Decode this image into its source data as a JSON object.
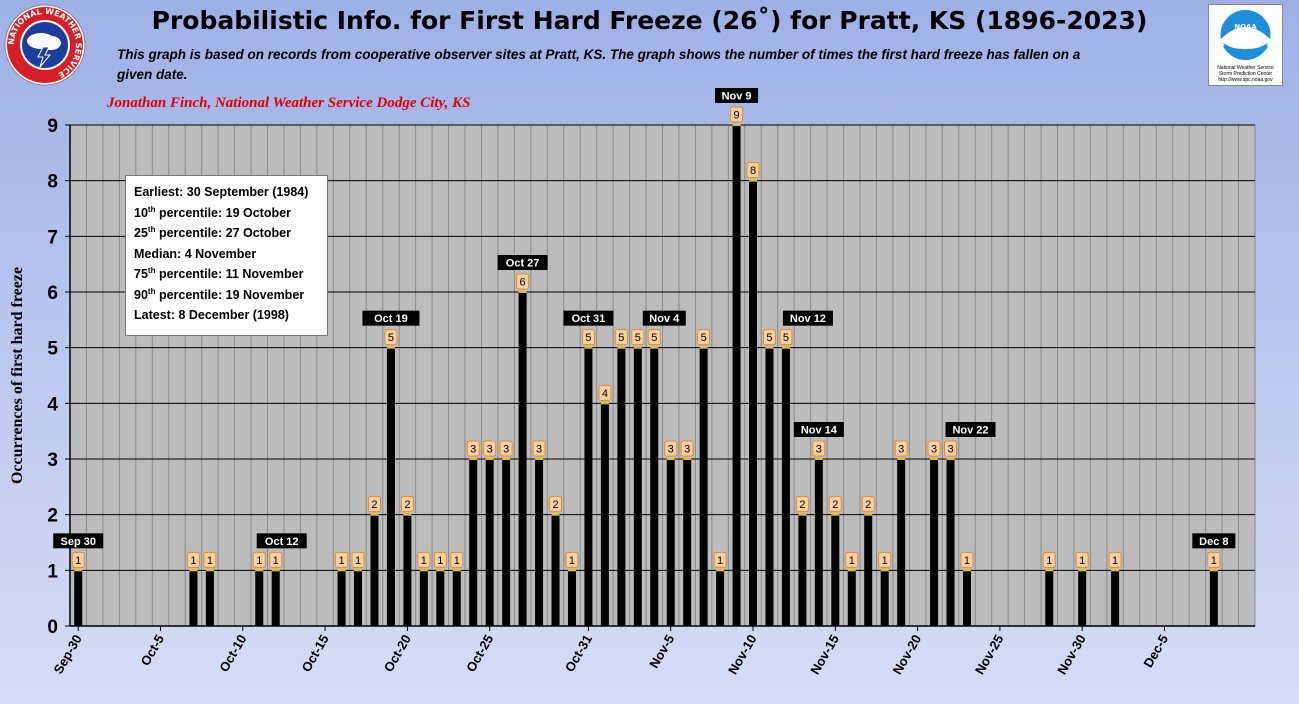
{
  "header": {
    "title": "Probabilistic Info. for First Hard Freeze (26˚) for Pratt, KS (1896-2023)",
    "subtitle_line1": "This graph is based on records from cooperative observer sites at Pratt, KS. The graph shows the number of times the first hard freeze has fallen on a",
    "subtitle_line2": "given date.",
    "credit": "Jonathan Finch, National Weather Service Dodge City, KS"
  },
  "logos": {
    "nws_ring_text": "NATIONAL WEATHER SERVICE",
    "noaa_label": "NOAA",
    "noaa_caption1": "National Weather Service",
    "noaa_caption2": "Storm Prediction Center",
    "noaa_caption3": "http://www.spc.noaa.gov",
    "colors": {
      "nws_ring": "#d81f26",
      "nws_inner": "#1b3d9c",
      "noaa_blue": "#1c8fd8"
    }
  },
  "stats": [
    {
      "label": "Earliest: 30 September (1984)"
    },
    {
      "prefix": "10",
      "sup": "th",
      "label": " percentile: 19 October"
    },
    {
      "prefix": "25",
      "sup": "th",
      "label": " percentile: 27 October"
    },
    {
      "label": "Median: 4 November"
    },
    {
      "prefix": "75",
      "sup": "th",
      "label": " percentile: 11 November"
    },
    {
      "prefix": "90",
      "sup": "th",
      "label": " percentile: 19 November"
    },
    {
      "label": "Latest: 8 December (1998)"
    }
  ],
  "chart_data": {
    "type": "bar",
    "ylabel": "Occurrences of first hard freeze",
    "xlabel": "",
    "ylim": [
      0,
      9
    ],
    "yticks": [
      0,
      1,
      2,
      3,
      4,
      5,
      6,
      7,
      8,
      9
    ],
    "grid": true,
    "start_date": "Sep-30",
    "end_date": "Dec-10",
    "colors": {
      "bar": "#000000",
      "plot_bg": "#bcbcbc",
      "grid": "#8a8a8a",
      "label_bg": "#fbd0a0",
      "label_border": "#d98c3a"
    },
    "x_tick_labels": [
      {
        "day": 0,
        "label": "Sep-30"
      },
      {
        "day": 5,
        "label": "Oct-5"
      },
      {
        "day": 10,
        "label": "Oct-10"
      },
      {
        "day": 15,
        "label": "Oct-15"
      },
      {
        "day": 20,
        "label": "Oct-20"
      },
      {
        "day": 25,
        "label": "Oct-25"
      },
      {
        "day": 31,
        "label": "Oct-31"
      },
      {
        "day": 36,
        "label": "Nov-5"
      },
      {
        "day": 41,
        "label": "Nov-10"
      },
      {
        "day": 46,
        "label": "Nov-15"
      },
      {
        "day": 51,
        "label": "Nov-20"
      },
      {
        "day": 56,
        "label": "Nov-25"
      },
      {
        "day": 61,
        "label": "Nov-30"
      },
      {
        "day": 66,
        "label": "Dec-5"
      }
    ],
    "values": [
      1,
      0,
      0,
      0,
      0,
      0,
      0,
      1,
      1,
      0,
      0,
      1,
      1,
      0,
      0,
      0,
      1,
      1,
      2,
      5,
      2,
      1,
      1,
      1,
      3,
      3,
      3,
      6,
      3,
      2,
      1,
      5,
      4,
      5,
      5,
      5,
      3,
      3,
      5,
      1,
      9,
      8,
      5,
      5,
      2,
      3,
      2,
      1,
      2,
      1,
      3,
      0,
      3,
      3,
      1,
      0,
      0,
      0,
      0,
      1,
      0,
      1,
      0,
      1,
      0,
      0,
      0,
      0,
      0,
      1,
      0,
      0
    ],
    "annotations": [
      {
        "day": 0,
        "text": "Sep 30"
      },
      {
        "day": 12,
        "text": "Oct 12"
      },
      {
        "day": 19,
        "text": "Oct  19"
      },
      {
        "day": 27,
        "text": "Oct 27"
      },
      {
        "day": 31,
        "text": "Oct 31"
      },
      {
        "day": 35,
        "text": "Nov 4"
      },
      {
        "day": 40,
        "text": "Nov 9"
      },
      {
        "day": 43,
        "text": "Nov 12"
      },
      {
        "day": 45,
        "text": "Nov 14"
      },
      {
        "day": 53,
        "text": "Nov 22"
      },
      {
        "day": 69,
        "text": "Dec 8"
      }
    ]
  }
}
